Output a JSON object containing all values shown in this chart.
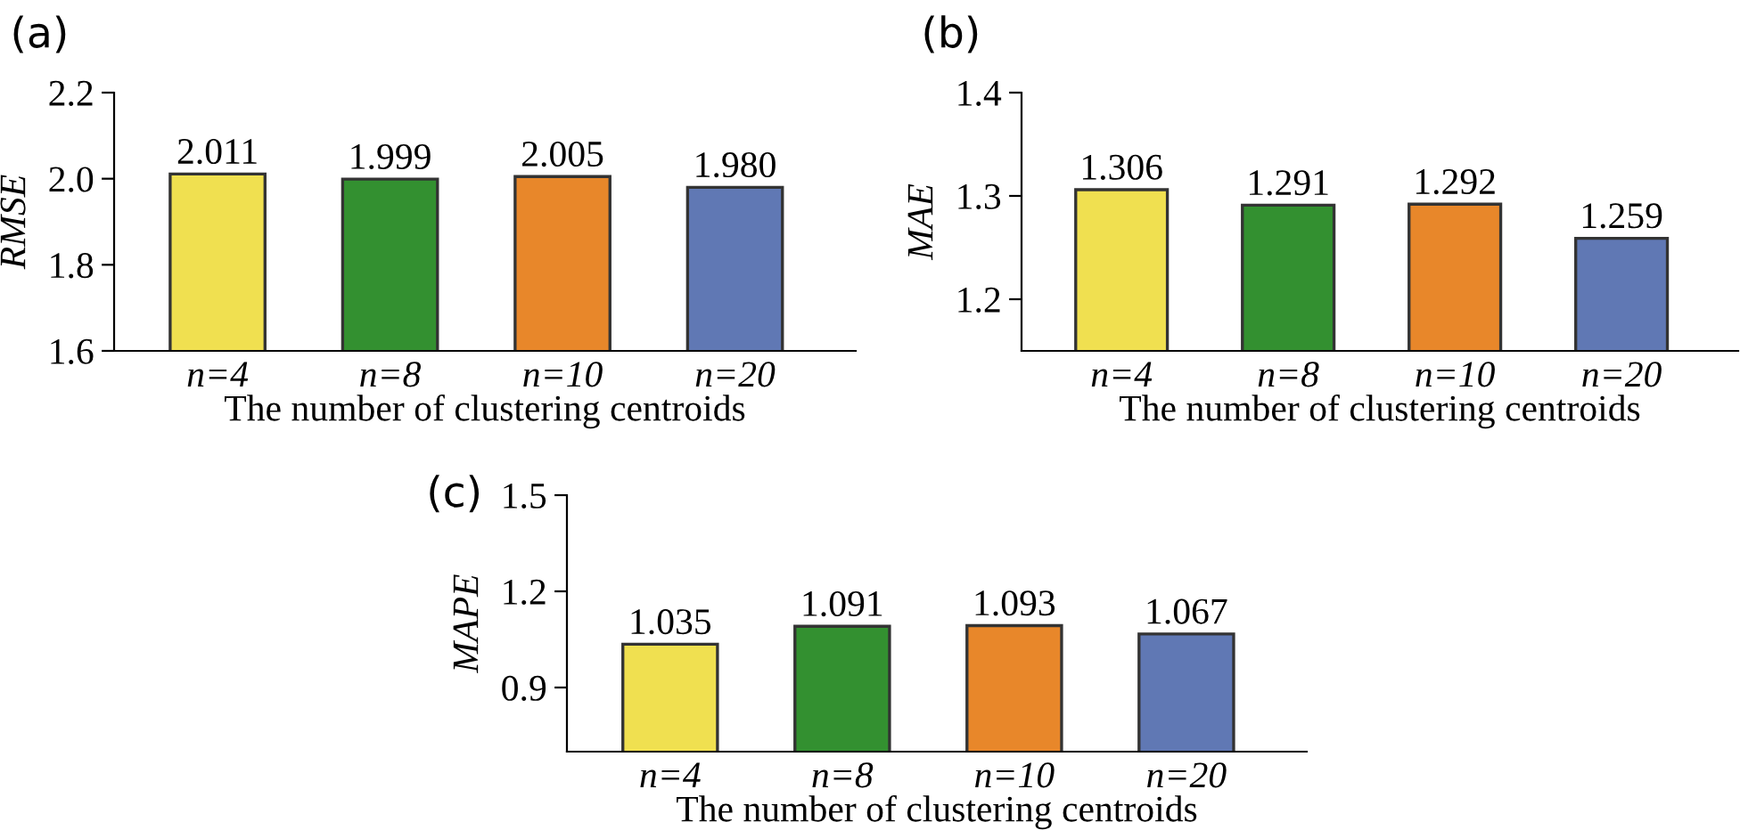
{
  "chart_data": [
    {
      "type": "bar",
      "title": "(a)",
      "xlabel": "The number of clustering centroids",
      "ylabel": "RMSE",
      "categories": [
        "n=4",
        "n=8",
        "n=10",
        "n=20"
      ],
      "values": [
        2.011,
        1.999,
        2.005,
        1.98
      ],
      "value_labels": [
        "2.011",
        "1.999",
        "2.005",
        "1.980"
      ],
      "colors": [
        "#f0e050",
        "#339030",
        "#e8872a",
        "#6078b4"
      ],
      "ylim": [
        1.6,
        2.2
      ],
      "yticks": [
        1.6,
        1.8,
        {
          "value": 2.0,
          "label": "2.0"
        },
        2.2
      ],
      "grid": false,
      "legend": false
    },
    {
      "type": "bar",
      "title": "(b)",
      "xlabel": "The number of clustering centroids",
      "ylabel": "MAE",
      "categories": [
        "n=4",
        "n=8",
        "n=10",
        "n=20"
      ],
      "values": [
        1.306,
        1.291,
        1.292,
        1.259
      ],
      "colors": [
        "#f0e050",
        "#339030",
        "#e8872a",
        "#6078b4"
      ],
      "ylim": [
        1.15,
        1.4
      ],
      "yticks": [
        1.2,
        1.3,
        1.4
      ],
      "data_labels": true,
      "grid": false,
      "legend": false
    },
    {
      "type": "bar",
      "title": "(c)",
      "xlabel": "The number of clustering centroids",
      "ylabel": "MAPE",
      "categories": [
        "n=4",
        "n=8",
        "n=10",
        "n=20"
      ],
      "values": [
        1.035,
        1.091,
        1.093,
        1.067
      ],
      "colors": [
        "#f0e050",
        "#339030",
        "#e8872a",
        "#6078b4"
      ],
      "ylim": [
        0.7,
        1.5
      ],
      "yticks": [
        0.9,
        1.2,
        1.5
      ],
      "data_labels": true,
      "grid": false,
      "legend": false
    }
  ]
}
